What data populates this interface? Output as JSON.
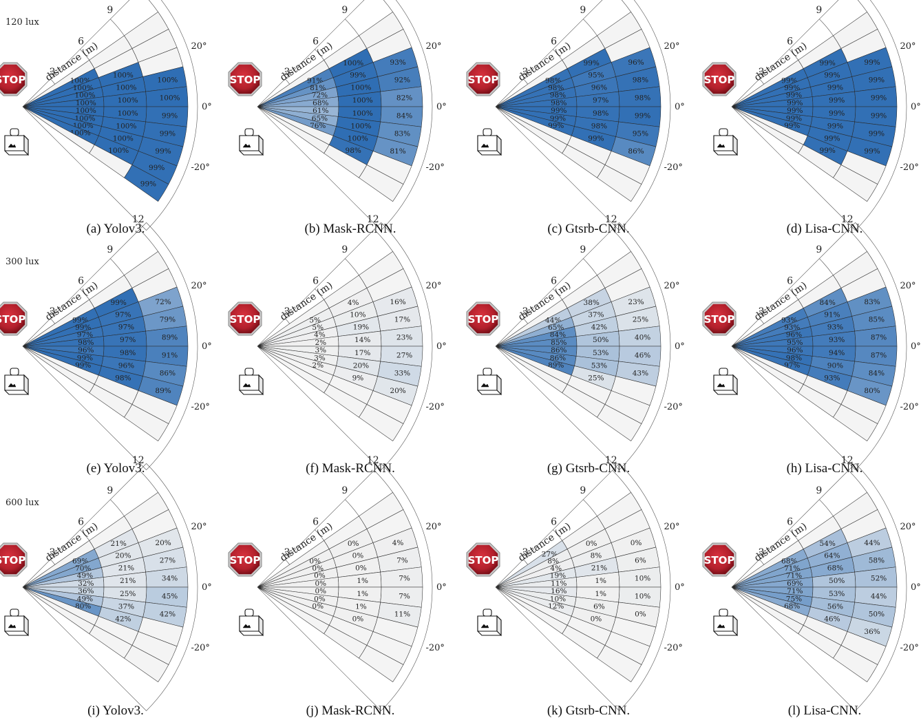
{
  "lux_labels": [
    "120 lux",
    "300 lux",
    "600 lux"
  ],
  "colors": {
    "accent": "#2f6eb4",
    "empty": "#f0f0f0",
    "stop_red": "#b3202c"
  },
  "icons": [
    "stop-sign-icon",
    "camera-icon"
  ],
  "chart_data": [
    {
      "type": "heatmap",
      "caption": "(a) Yolov3.",
      "xlabel": "distance (m)",
      "distance_ticks": [
        "3",
        "6",
        "9",
        "12"
      ],
      "angle_ticks": [
        "20°",
        "0°",
        "-20°"
      ],
      "values": [
        [
          null,
          100,
          100,
          100,
          100,
          100,
          100,
          100,
          100,
          null
        ],
        [
          null,
          null,
          100,
          100,
          100,
          100,
          100,
          100,
          100,
          null
        ],
        [
          null,
          null,
          null,
          100,
          100,
          99,
          99,
          99,
          99,
          99
        ]
      ]
    },
    {
      "type": "heatmap",
      "caption": "(b) Mask-RCNN.",
      "xlabel": "distance (m)",
      "distance_ticks": [
        "3",
        "6",
        "9",
        "12"
      ],
      "angle_ticks": [
        "20°",
        "0°",
        "-20°"
      ],
      "values": [
        [
          null,
          91,
          81,
          72,
          68,
          61,
          65,
          76,
          null,
          null
        ],
        [
          null,
          100,
          99,
          100,
          100,
          100,
          100,
          100,
          98,
          null
        ],
        [
          null,
          null,
          93,
          92,
          82,
          84,
          83,
          81,
          null,
          null
        ]
      ]
    },
    {
      "type": "heatmap",
      "caption": "(c) Gtsrb-CNN.",
      "xlabel": "distance (m)",
      "distance_ticks": [
        "3",
        "6",
        "9",
        "12"
      ],
      "angle_ticks": [
        "20°",
        "0°",
        "-20°"
      ],
      "values": [
        [
          null,
          98,
          98,
          98,
          98,
          99,
          99,
          99,
          null,
          null
        ],
        [
          null,
          99,
          95,
          96,
          97,
          98,
          98,
          99,
          null,
          null
        ],
        [
          null,
          null,
          96,
          98,
          98,
          99,
          95,
          86,
          null,
          null
        ]
      ]
    },
    {
      "type": "heatmap",
      "caption": "(d) Lisa-CNN.",
      "xlabel": "distance (m)",
      "distance_ticks": [
        "3",
        "6",
        "9",
        "12"
      ],
      "angle_ticks": [
        "20°",
        "0°",
        "-20°"
      ],
      "values": [
        [
          null,
          99,
          99,
          99,
          99,
          99,
          99,
          99,
          null,
          null
        ],
        [
          null,
          99,
          99,
          99,
          99,
          99,
          99,
          99,
          99,
          null
        ],
        [
          null,
          null,
          99,
          99,
          99,
          99,
          99,
          99,
          null,
          null
        ]
      ]
    },
    {
      "type": "heatmap",
      "caption": "(e) Yolov3.",
      "xlabel": "distance (m)",
      "distance_ticks": [
        "3",
        "6",
        "9",
        "12"
      ],
      "angle_ticks": [
        "20°",
        "0°",
        "-20°"
      ],
      "values": [
        [
          null,
          99,
          99,
          97,
          98,
          96,
          99,
          99,
          null,
          null
        ],
        [
          null,
          99,
          97,
          97,
          97,
          98,
          96,
          98,
          null,
          null
        ],
        [
          null,
          null,
          72,
          79,
          89,
          91,
          86,
          89,
          null,
          null
        ]
      ]
    },
    {
      "type": "heatmap",
      "caption": "(f) Mask-RCNN.",
      "xlabel": "distance (m)",
      "distance_ticks": [
        "3",
        "6",
        "9",
        "12"
      ],
      "angle_ticks": [
        "20°",
        "0°",
        "-20°"
      ],
      "values": [
        [
          null,
          5,
          5,
          4,
          2,
          3,
          3,
          2,
          null,
          null
        ],
        [
          null,
          4,
          10,
          19,
          14,
          17,
          20,
          9,
          null,
          null
        ],
        [
          null,
          null,
          16,
          17,
          23,
          27,
          33,
          20,
          null,
          null
        ]
      ]
    },
    {
      "type": "heatmap",
      "caption": "(g) Gtsrb-CNN.",
      "xlabel": "distance (m)",
      "distance_ticks": [
        "3",
        "6",
        "9",
        "12"
      ],
      "angle_ticks": [
        "20°",
        "0°",
        "-20°"
      ],
      "values": [
        [
          null,
          44,
          65,
          84,
          85,
          86,
          86,
          89,
          null,
          null
        ],
        [
          null,
          38,
          37,
          42,
          50,
          53,
          53,
          25,
          null,
          null
        ],
        [
          null,
          null,
          23,
          25,
          40,
          46,
          43,
          null,
          null,
          null
        ]
      ]
    },
    {
      "type": "heatmap",
      "caption": "(h) Lisa-CNN.",
      "xlabel": "distance (m)",
      "distance_ticks": [
        "3",
        "6",
        "9",
        "12"
      ],
      "angle_ticks": [
        "20°",
        "0°",
        "-20°"
      ],
      "values": [
        [
          null,
          93,
          93,
          96,
          95,
          96,
          98,
          97,
          null,
          null
        ],
        [
          null,
          84,
          91,
          93,
          93,
          94,
          90,
          93,
          null,
          null
        ],
        [
          null,
          null,
          83,
          85,
          87,
          87,
          84,
          80,
          null,
          null
        ]
      ]
    },
    {
      "type": "heatmap",
      "caption": "(i) Yolov3.",
      "xlabel": "distance (m)",
      "distance_ticks": [
        "3",
        "6",
        "9",
        "12"
      ],
      "angle_ticks": [
        "20°",
        "0°",
        "-20°"
      ],
      "values": [
        [
          null,
          69,
          70,
          49,
          32,
          36,
          49,
          80,
          null,
          null
        ],
        [
          null,
          21,
          20,
          21,
          21,
          25,
          37,
          42,
          null,
          null
        ],
        [
          null,
          null,
          20,
          27,
          34,
          45,
          42,
          null,
          null,
          null
        ]
      ]
    },
    {
      "type": "heatmap",
      "caption": "(j) Mask-RCNN.",
      "xlabel": "distance (m)",
      "distance_ticks": [
        "3",
        "6",
        "9",
        "12"
      ],
      "angle_ticks": [
        "20°",
        "0°",
        "-20°"
      ],
      "values": [
        [
          null,
          0,
          0,
          0,
          0,
          0,
          0,
          0,
          null,
          null
        ],
        [
          null,
          0,
          0,
          0,
          1,
          1,
          1,
          0,
          null,
          null
        ],
        [
          null,
          null,
          4,
          7,
          7,
          7,
          11,
          null,
          null,
          null
        ]
      ]
    },
    {
      "type": "heatmap",
      "caption": "(k) Gtsrb-CNN.",
      "xlabel": "distance (m)",
      "distance_ticks": [
        "3",
        "6",
        "9",
        "12"
      ],
      "angle_ticks": [
        "20°",
        "0°",
        "-20°"
      ],
      "values": [
        [
          27,
          8,
          4,
          19,
          11,
          16,
          10,
          12,
          null,
          null
        ],
        [
          null,
          0,
          8,
          21,
          1,
          1,
          6,
          0,
          null,
          null
        ],
        [
          null,
          null,
          0,
          6,
          10,
          10,
          0,
          null,
          null,
          null
        ]
      ]
    },
    {
      "type": "heatmap",
      "caption": "(l) Lisa-CNN.",
      "xlabel": "distance (m)",
      "distance_ticks": [
        "3",
        "6",
        "9",
        "12"
      ],
      "angle_ticks": [
        "20°",
        "0°",
        "-20°"
      ],
      "values": [
        [
          null,
          68,
          71,
          71,
          69,
          71,
          75,
          68,
          null,
          null
        ],
        [
          null,
          54,
          64,
          68,
          50,
          53,
          56,
          46,
          null,
          null
        ],
        [
          null,
          null,
          44,
          58,
          52,
          44,
          50,
          36,
          null,
          null
        ]
      ]
    }
  ]
}
